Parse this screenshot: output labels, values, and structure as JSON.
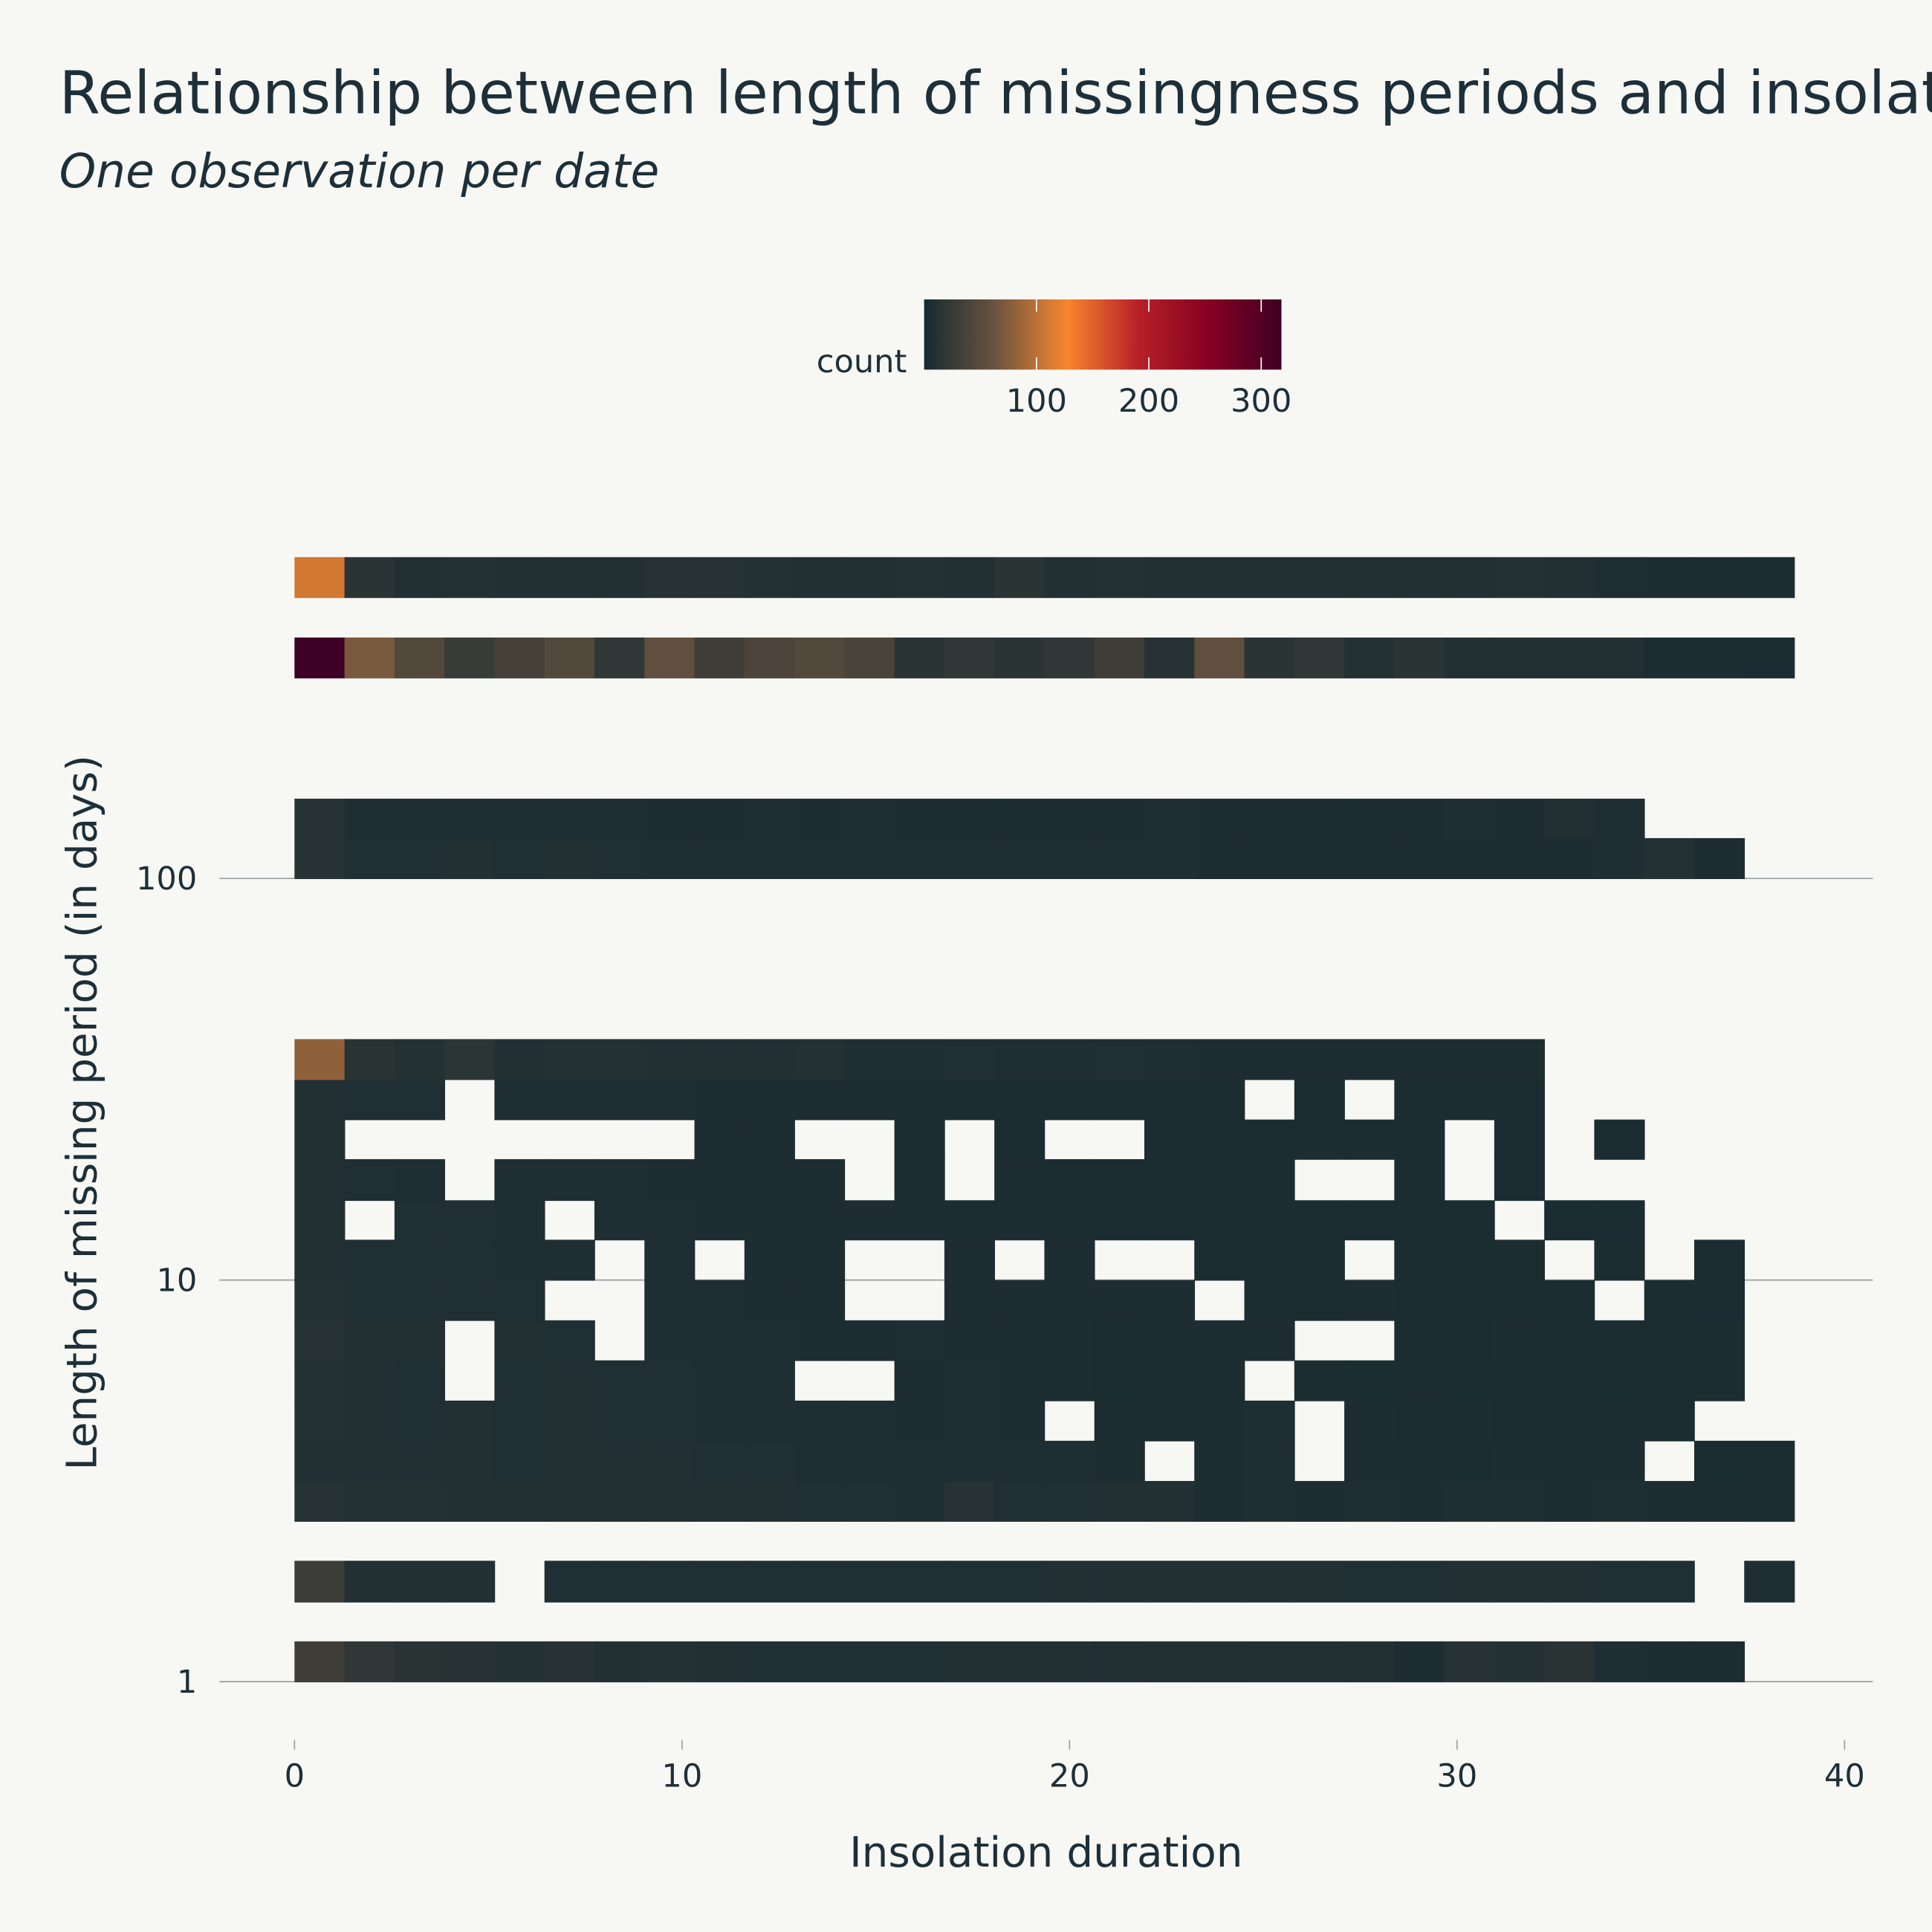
{
  "chart_data": {
    "type": "heatmap",
    "title": "Relationship between length of missingness periods and insolat",
    "subtitle": "One observation per date",
    "x_label": "Insolation duration",
    "y_label": "Length of missing period (in days)",
    "colorbar_title": "count",
    "xlim": [
      -1.94,
      40.73
    ],
    "xticks": [
      0,
      10,
      20,
      30,
      40
    ],
    "ylim": [
      0.78,
      850
    ],
    "yticks": [
      1,
      10,
      100
    ],
    "y_log": true,
    "grid": true,
    "zlim": [
      0,
      318
    ],
    "zticks": [
      100,
      200,
      300
    ],
    "colorscale": [
      "#172a31",
      "#6b5440",
      "#f7862e",
      "#b72027",
      "#860022",
      "#3e0024"
    ],
    "x_bins": [
      0,
      1.29,
      2.58,
      3.87,
      5.16,
      6.45,
      7.74,
      9.03,
      10.32,
      11.61,
      12.9,
      14.19,
      15.48,
      16.77,
      18.06,
      19.35,
      20.64,
      21.93,
      23.22,
      24.51,
      25.8,
      27.09,
      28.38,
      29.67,
      30.96,
      32.25,
      33.54,
      34.83,
      36.12,
      37.41,
      38.7
    ],
    "y_bins": [
      [
        1,
        1.26
      ],
      [
        1.58,
        2
      ],
      [
        2.51,
        3.16
      ],
      [
        3.16,
        3.98
      ],
      [
        3.98,
        5.01
      ],
      [
        5.01,
        6.31
      ],
      [
        6.31,
        7.94
      ],
      [
        7.94,
        10
      ],
      [
        10,
        12.6
      ],
      [
        12.6,
        15.8
      ],
      [
        15.8,
        20
      ],
      [
        20,
        25.1
      ],
      [
        25.1,
        31.6
      ],
      [
        31.6,
        39.8
      ],
      [
        100,
        126
      ],
      [
        126,
        158
      ],
      [
        316,
        398
      ],
      [
        501,
        631
      ]
    ],
    "z": [
      [
        30,
        20,
        14,
        12,
        10,
        12,
        9,
        10,
        8,
        7,
        7,
        7,
        7,
        8,
        8,
        8,
        8,
        9,
        9,
        8,
        8,
        9,
        5,
        12,
        10,
        14,
        6,
        5,
        5,
        null
      ],
      [
        28,
        8,
        8,
        8,
        null,
        7,
        7,
        7,
        7,
        7,
        7,
        7,
        7,
        7,
        7,
        8,
        8,
        9,
        8,
        8,
        8,
        7,
        7,
        9,
        8,
        8,
        7,
        7,
        null,
        6
      ],
      [
        12,
        10,
        10,
        9,
        9,
        8,
        8,
        8,
        9,
        8,
        7,
        7,
        6,
        12,
        7,
        7,
        9,
        8,
        5,
        6,
        5,
        6,
        5,
        6,
        6,
        5,
        6,
        5,
        5,
        4
      ],
      [
        9,
        8,
        8,
        8,
        7,
        8,
        8,
        8,
        7,
        7,
        6,
        6,
        6,
        6,
        6,
        6,
        5,
        null,
        5,
        6,
        null,
        5,
        5,
        4,
        5,
        5,
        5,
        null,
        4,
        4
      ],
      [
        10,
        8,
        7,
        8,
        7,
        8,
        7,
        7,
        6,
        6,
        6,
        6,
        5,
        6,
        5,
        null,
        5,
        5,
        5,
        6,
        null,
        5,
        4,
        5,
        4,
        4,
        5,
        4,
        null,
        null
      ],
      [
        10,
        8,
        7,
        null,
        7,
        8,
        7,
        7,
        6,
        6,
        null,
        null,
        5,
        6,
        5,
        5,
        4,
        5,
        5,
        null,
        5,
        4,
        5,
        4,
        4,
        4,
        4,
        4,
        4,
        null
      ],
      [
        11,
        9,
        8,
        null,
        8,
        7,
        null,
        6,
        6,
        6,
        5,
        5,
        6,
        5,
        5,
        5,
        4,
        5,
        5,
        5,
        null,
        null,
        4,
        4,
        5,
        4,
        4,
        4,
        4,
        null
      ],
      [
        10,
        7,
        7,
        7,
        7,
        null,
        null,
        6,
        6,
        5,
        5,
        null,
        null,
        5,
        5,
        5,
        5,
        5,
        null,
        4,
        4,
        5,
        4,
        4,
        4,
        4,
        null,
        4,
        3,
        null
      ],
      [
        8,
        7,
        7,
        7,
        6,
        6,
        null,
        6,
        null,
        5,
        5,
        null,
        null,
        5,
        null,
        5,
        null,
        null,
        4,
        4,
        4,
        null,
        4,
        4,
        4,
        null,
        4,
        null,
        3,
        null
      ],
      [
        9,
        null,
        7,
        7,
        6,
        null,
        6,
        6,
        5,
        5,
        5,
        5,
        5,
        4,
        5,
        4,
        4,
        4,
        4,
        4,
        4,
        4,
        4,
        4,
        null,
        3,
        3,
        null,
        null,
        null
      ],
      [
        8,
        7,
        6,
        null,
        6,
        6,
        6,
        5,
        5,
        5,
        5,
        null,
        5,
        null,
        5,
        4,
        4,
        4,
        4,
        4,
        null,
        null,
        4,
        null,
        3,
        null,
        null,
        null,
        null,
        null
      ],
      [
        8,
        null,
        null,
        null,
        null,
        null,
        null,
        null,
        5,
        5,
        null,
        null,
        5,
        null,
        4,
        null,
        null,
        4,
        4,
        4,
        4,
        4,
        4,
        null,
        3,
        null,
        3,
        null,
        null,
        null
      ],
      [
        8,
        7,
        7,
        null,
        6,
        6,
        6,
        6,
        5,
        5,
        5,
        5,
        5,
        4,
        4,
        4,
        4,
        4,
        4,
        null,
        4,
        null,
        4,
        4,
        3,
        null,
        null,
        null,
        null,
        null
      ],
      [
        80,
        14,
        10,
        16,
        8,
        10,
        10,
        8,
        8,
        8,
        10,
        6,
        6,
        7,
        6,
        6,
        7,
        6,
        5,
        5,
        5,
        5,
        5,
        5,
        5,
        null,
        null,
        null,
        null,
        null
      ],
      [
        12,
        7,
        7,
        8,
        7,
        8,
        7,
        6,
        6,
        6,
        6,
        6,
        6,
        6,
        6,
        6,
        6,
        6,
        5,
        5,
        5,
        5,
        5,
        5,
        5,
        5,
        6,
        10,
        5,
        null
      ],
      [
        12,
        6,
        6,
        6,
        6,
        6,
        6,
        5,
        5,
        6,
        5,
        6,
        5,
        5,
        5,
        5,
        5,
        6,
        5,
        5,
        5,
        5,
        5,
        6,
        5,
        8,
        6,
        null,
        null,
        null
      ],
      [
        318,
        70,
        45,
        25,
        35,
        45,
        20,
        55,
        30,
        40,
        45,
        38,
        15,
        20,
        15,
        20,
        30,
        12,
        55,
        15,
        20,
        10,
        15,
        8,
        8,
        9,
        8,
        4,
        4,
        3
      ],
      [
        110,
        15,
        9,
        10,
        8,
        8,
        9,
        12,
        12,
        10,
        8,
        8,
        10,
        8,
        15,
        8,
        10,
        8,
        9,
        8,
        9,
        9,
        9,
        8,
        10,
        8,
        6,
        5,
        5,
        4
      ]
    ]
  }
}
